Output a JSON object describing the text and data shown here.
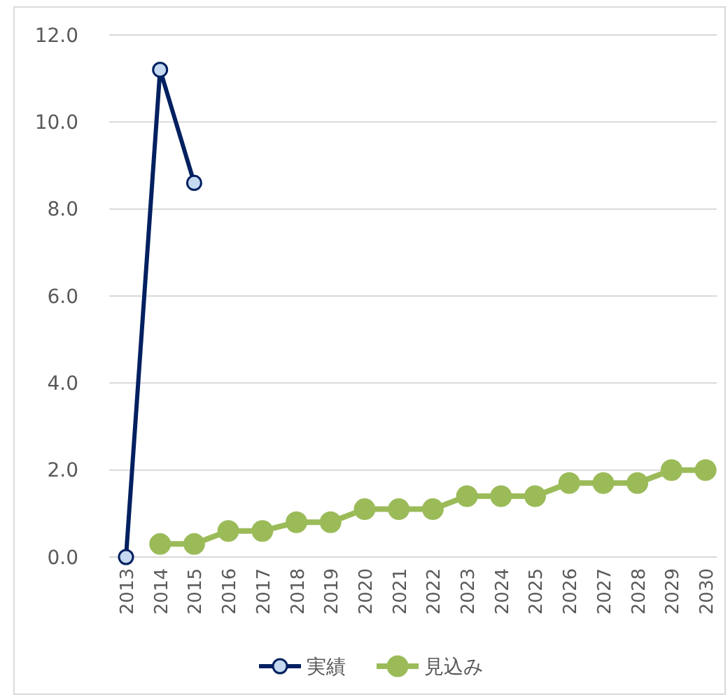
{
  "chart_data": {
    "type": "line",
    "categories": [
      "2013",
      "2014",
      "2015",
      "2016",
      "2017",
      "2018",
      "2019",
      "2020",
      "2021",
      "2022",
      "2023",
      "2024",
      "2025",
      "2026",
      "2027",
      "2028",
      "2029",
      "2030"
    ],
    "series": [
      {
        "name": "実績",
        "color": "#002060",
        "marker": "circle",
        "values": [
          0,
          11.2,
          8.6,
          null,
          null,
          null,
          null,
          null,
          null,
          null,
          null,
          null,
          null,
          null,
          null,
          null,
          null,
          null
        ]
      },
      {
        "name": "見込み",
        "color": "#9bbb59",
        "marker": "circle",
        "values": [
          null,
          0.3,
          0.3,
          0.6,
          0.6,
          0.8,
          0.8,
          1.1,
          1.1,
          1.1,
          1.4,
          1.4,
          1.4,
          1.7,
          1.7,
          1.7,
          2.0,
          2.0
        ]
      }
    ],
    "ylim": [
      0,
      12
    ],
    "yticks": [
      {
        "value": 0,
        "label": "0.0"
      },
      {
        "value": 2,
        "label": "2.0"
      },
      {
        "value": 4,
        "label": "4.0"
      },
      {
        "value": 6,
        "label": "6.0"
      },
      {
        "value": 8,
        "label": "8.0"
      },
      {
        "value": 10,
        "label": "10.0"
      },
      {
        "value": 12,
        "label": "12.0"
      }
    ],
    "grid": "y",
    "legend": "bottom"
  }
}
